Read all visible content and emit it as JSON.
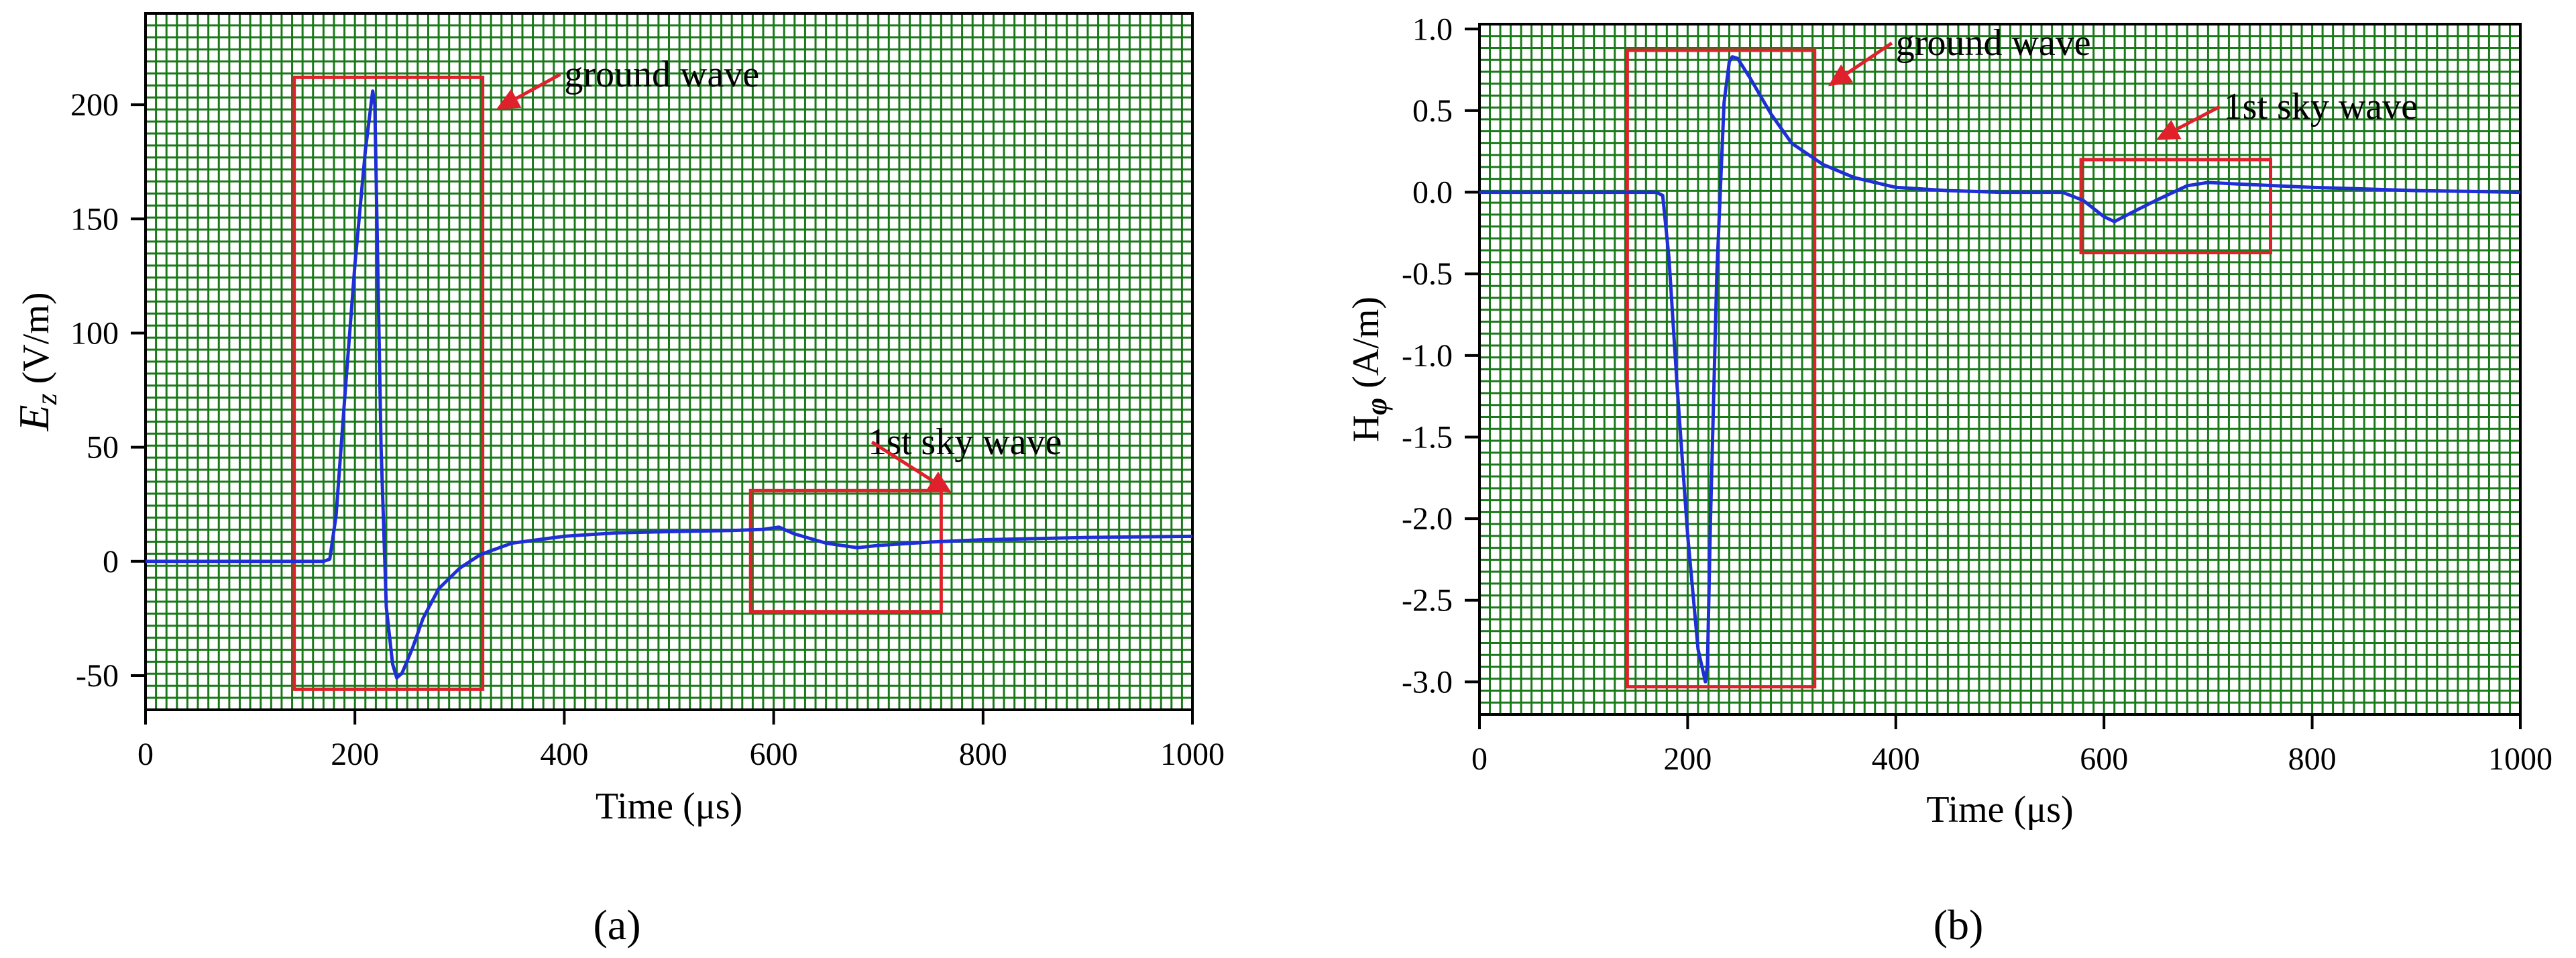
{
  "figure": {
    "panel_labels": [
      "(a)",
      "(b)"
    ]
  },
  "colors": {
    "grid": "#1a7a1a",
    "curve": "#1f2fd6",
    "box": "#e0202a",
    "axis": "#000000"
  },
  "chart_data": [
    {
      "type": "line",
      "panel": "a",
      "xlabel": "Time (μs)",
      "ylabel": "Ez (V/m)",
      "ylabel_main": "E",
      "ylabel_sub": "z",
      "ylabel_rest": " (V/m)",
      "xlim": [
        0,
        1000
      ],
      "ylim": [
        -65,
        240
      ],
      "xticks": [
        0,
        200,
        400,
        600,
        800,
        1000
      ],
      "yticks": [
        -50,
        0,
        50,
        100,
        150,
        200
      ],
      "grid": true,
      "series": [
        {
          "name": "Ez",
          "x": [
            0,
            170,
            176,
            182,
            190,
            200,
            210,
            217,
            219,
            221,
            225,
            230,
            236,
            240,
            245,
            255,
            265,
            280,
            300,
            320,
            350,
            400,
            450,
            500,
            560,
            590,
            605,
            620,
            650,
            680,
            700,
            750,
            800,
            900,
            1000
          ],
          "y": [
            0,
            0,
            1,
            20,
            70,
            130,
            180,
            206,
            200,
            150,
            50,
            -20,
            -45,
            -51,
            -49,
            -38,
            -25,
            -12,
            -3,
            3,
            8,
            11,
            12.5,
            13,
            13.5,
            14,
            15,
            12,
            8,
            6,
            7,
            8.5,
            9.5,
            10.5,
            11
          ]
        }
      ],
      "boxes": [
        {
          "label": "ground wave",
          "x0": 142,
          "x1": 322,
          "y0": -56,
          "y1": 212
        },
        {
          "label": "1st sky wave",
          "x0": 578,
          "x1": 760,
          "y0": -22,
          "y1": 31
        }
      ],
      "annotations": [
        {
          "text": "ground wave",
          "x": 400,
          "y": 208,
          "arrow_x": 335,
          "arrow_y": 198
        },
        {
          "text": "1st sky wave",
          "x": 690,
          "y": 47,
          "arrow_x": 770,
          "arrow_y": 30
        }
      ]
    },
    {
      "type": "line",
      "panel": "b",
      "xlabel": "Time (μs)",
      "ylabel": "Hφ (A/m)",
      "ylabel_main": "H",
      "ylabel_sub": "φ",
      "ylabel_rest": " (A/m)",
      "xlim": [
        0,
        1000
      ],
      "ylim": [
        -3.2,
        1.03
      ],
      "xticks": [
        0,
        200,
        400,
        600,
        800,
        1000
      ],
      "yticks": [
        -3.0,
        -2.5,
        -2.0,
        -1.5,
        -1.0,
        -0.5,
        0.0,
        0.5,
        1.0
      ],
      "ytick_labels": [
        "-3.0",
        "-2.5",
        "-2.0",
        "-1.5",
        "-1.0",
        "-0.5",
        "0.0",
        "0.5",
        "1.0"
      ],
      "grid": true,
      "series": [
        {
          "name": "Hphi",
          "x": [
            0,
            170,
            176,
            182,
            190,
            200,
            210,
            217,
            219,
            222,
            228,
            235,
            240,
            243,
            248,
            260,
            280,
            300,
            330,
            360,
            400,
            450,
            500,
            560,
            580,
            600,
            610,
            625,
            650,
            680,
            700,
            730,
            800,
            900,
            1000
          ],
          "y": [
            0,
            0,
            -0.02,
            -0.4,
            -1.2,
            -2.1,
            -2.8,
            -3.0,
            -2.9,
            -2.0,
            -0.5,
            0.55,
            0.8,
            0.83,
            0.82,
            0.7,
            0.48,
            0.3,
            0.17,
            0.09,
            0.03,
            0.01,
            0.0,
            0.0,
            -0.05,
            -0.15,
            -0.18,
            -0.13,
            -0.05,
            0.04,
            0.06,
            0.05,
            0.03,
            0.01,
            0.0
          ]
        }
      ],
      "boxes": [
        {
          "label": "ground wave",
          "x0": 142,
          "x1": 322,
          "y0": -3.03,
          "y1": 0.87
        },
        {
          "label": "1st sky wave",
          "x0": 578,
          "x1": 760,
          "y0": -0.37,
          "y1": 0.2
        }
      ],
      "annotations": [
        {
          "text": "ground wave",
          "x": 400,
          "y": 0.84,
          "arrow_x": 335,
          "arrow_y": 0.65
        },
        {
          "text": "1st sky wave",
          "x": 715,
          "y": 0.45,
          "arrow_x": 650,
          "arrow_y": 0.32
        }
      ]
    }
  ]
}
